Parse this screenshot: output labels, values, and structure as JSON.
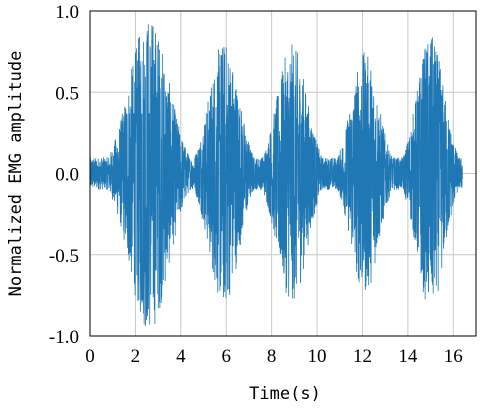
{
  "chart_data": {
    "type": "line",
    "title": "",
    "xlabel": "Time(s)",
    "ylabel": "Normalized EMG amplitude",
    "xlim": [
      0,
      17
    ],
    "ylim": [
      -1.0,
      1.0
    ],
    "x_ticks": [
      0,
      2,
      4,
      6,
      8,
      10,
      12,
      14,
      16
    ],
    "x_tick_labels": [
      "0",
      "2",
      "4",
      "6",
      "8",
      "10",
      "12",
      "14",
      "16"
    ],
    "y_ticks": [
      1.0,
      0.5,
      0.0,
      -0.5,
      -1.0
    ],
    "y_tick_labels": [
      "1.0",
      "0.5",
      "0.0",
      "-0.5",
      "-1.0"
    ],
    "grid": true,
    "legend": false,
    "signal_duration_s": 16.4,
    "baseline_amplitude": 0.1,
    "bursts": [
      {
        "center_s": 2.6,
        "width_s": 0.85,
        "peak_amplitude": 0.98
      },
      {
        "center_s": 5.9,
        "width_s": 0.65,
        "peak_amplitude": 0.82
      },
      {
        "center_s": 8.9,
        "width_s": 0.65,
        "peak_amplitude": 0.8
      },
      {
        "center_s": 12.1,
        "width_s": 0.6,
        "peak_amplitude": 0.75
      },
      {
        "center_s": 15.0,
        "width_s": 0.6,
        "peak_amplitude": 0.85
      }
    ],
    "series": [
      {
        "color": "#1f77b4"
      }
    ]
  }
}
